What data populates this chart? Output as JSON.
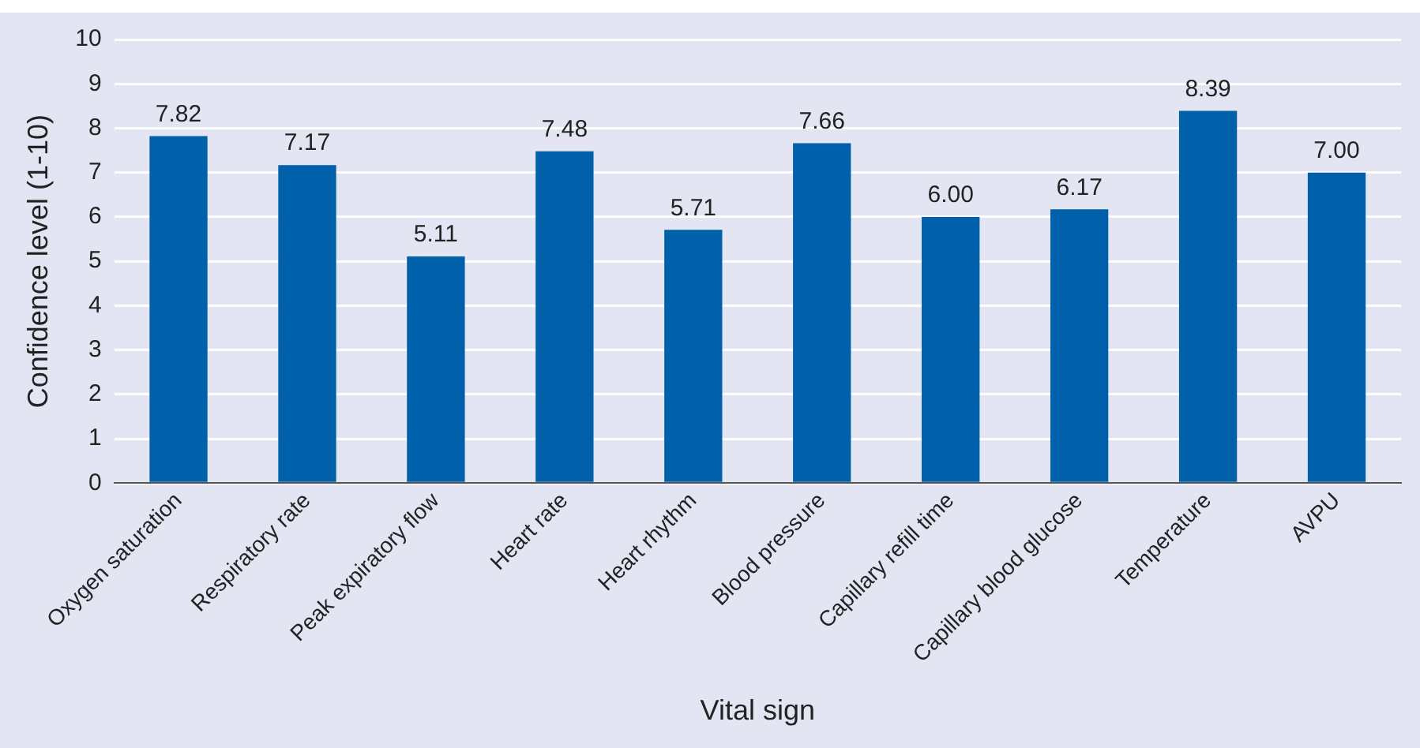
{
  "chart_data": {
    "type": "bar",
    "xlabel": "Vital sign",
    "ylabel": "Confidence level (1-10)",
    "categories": [
      "Oxygen saturation",
      "Respiratory rate",
      "Peak expiratory flow",
      "Heart rate",
      "Heart rhythm",
      "Blood pressure",
      "Capillary refill time",
      "Capillary blood glucose",
      "Temperature",
      "AVPU"
    ],
    "values": [
      7.82,
      7.17,
      5.11,
      7.48,
      5.71,
      7.66,
      6.0,
      6.17,
      8.39,
      7.0
    ],
    "value_labels": [
      "7.82",
      "7.17",
      "5.11",
      "7.48",
      "5.71",
      "7.66",
      "6.00",
      "6.17",
      "8.39",
      "7.00"
    ],
    "color": "#0060a9",
    "ylim": [
      0,
      10
    ],
    "yticks": [
      0,
      1,
      2,
      3,
      4,
      5,
      6,
      7,
      8,
      9,
      10
    ],
    "grid": "y",
    "legend": false
  }
}
